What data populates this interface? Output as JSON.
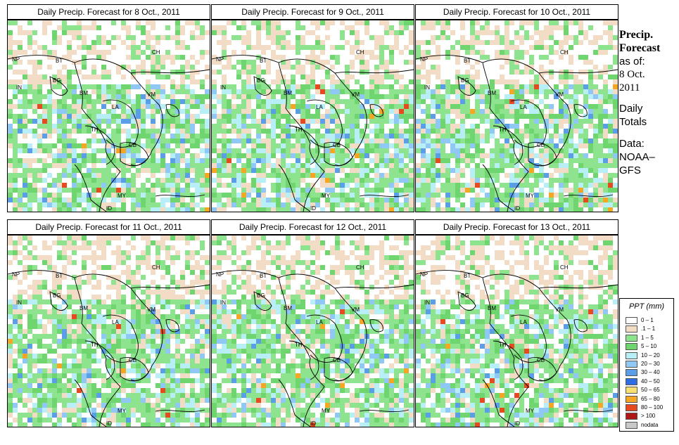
{
  "panels": [
    {
      "title": "Daily Precip. Forecast for  8 Oct., 2011"
    },
    {
      "title": "Daily Precip. Forecast for  9 Oct., 2011"
    },
    {
      "title": "Daily Precip. Forecast for  10 Oct., 2011"
    },
    {
      "title": "Daily Precip. Forecast for  11 Oct., 2011"
    },
    {
      "title": "Daily Precip. Forecast for  12 Oct., 2011"
    },
    {
      "title": "Daily Precip. Forecast for  13 Oct., 2011"
    }
  ],
  "map_labels": [
    "CH",
    "NP",
    "BT",
    "IN",
    "BG",
    "BM",
    "VM",
    "LA",
    "TH",
    "CB",
    "MY",
    "ID"
  ],
  "sidebar": {
    "heading_line1": "Precip.",
    "heading_line2": "Forecast",
    "asof_label": "as of:",
    "asof_date1": "8 Oct.",
    "asof_date2": "2011",
    "totals1": "Daily",
    "totals2": "Totals",
    "data1": "Data:",
    "data2": "NOAA–",
    "data3": "GFS"
  },
  "legend": {
    "title": "PPT (mm)",
    "items": [
      {
        "label": "0 – 1",
        "color": "#ffffff"
      },
      {
        "label": ".1 – 1",
        "color": "#f3dcc5"
      },
      {
        "label": "1 – 5",
        "color": "#8ee38e"
      },
      {
        "label": "5 – 10",
        "color": "#6fd66f"
      },
      {
        "label": "10 – 20",
        "color": "#b8eef5"
      },
      {
        "label": "20 – 30",
        "color": "#8fc8f5"
      },
      {
        "label": "30 – 40",
        "color": "#5a9ee8"
      },
      {
        "label": "40 – 50",
        "color": "#2e6de6"
      },
      {
        "label": "50 – 65",
        "color": "#f5e070"
      },
      {
        "label": "65 – 80",
        "color": "#f5a623"
      },
      {
        "label": "80 – 100",
        "color": "#e64a1e"
      },
      {
        "label": "> 100",
        "color": "#b01818"
      },
      {
        "label": "nodata",
        "color": "#c8c8c8"
      }
    ]
  }
}
